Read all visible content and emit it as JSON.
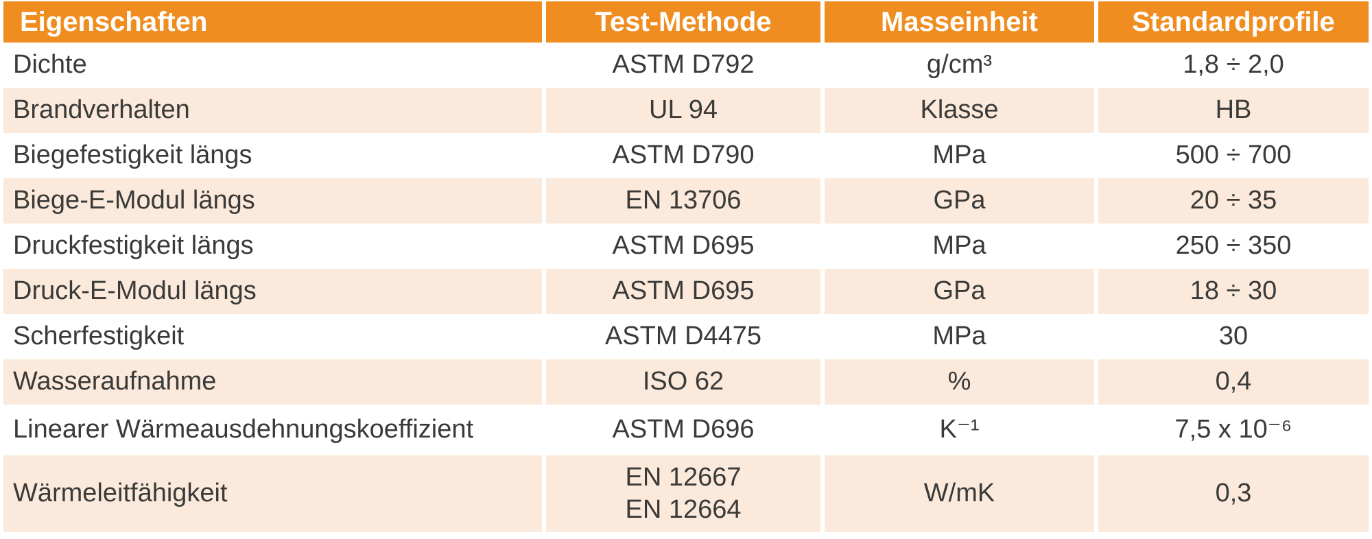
{
  "colors": {
    "header_bg": "#EF8D21",
    "header_text": "#FFFFFF",
    "row_alt_bg": "#FBEADB",
    "body_text": "#3A3A39",
    "row_bg": "#FFFFFF"
  },
  "chart_data": {
    "type": "table",
    "title": "",
    "columns": [
      "Eigenschaften",
      "Test-Methode",
      "Masseinheit",
      "Standardprofile"
    ],
    "rows": [
      [
        "Dichte",
        "ASTM D792",
        "g/cm³",
        "1,8 ÷ 2,0"
      ],
      [
        "Brandverhalten",
        "UL 94",
        "Klasse",
        "HB"
      ],
      [
        "Biegefestigkeit längs",
        "ASTM D790",
        "MPa",
        "500 ÷ 700"
      ],
      [
        "Biege-E-Modul längs",
        "EN 13706",
        "GPa",
        "20 ÷ 35"
      ],
      [
        "Druckfestigkeit längs",
        "ASTM D695",
        "MPa",
        "250 ÷ 350"
      ],
      [
        "Druck-E-Modul längs",
        "ASTM D695",
        "GPa",
        "18 ÷ 30"
      ],
      [
        "Scherfestigkeit",
        "ASTM D4475",
        "MPa",
        "30"
      ],
      [
        "Wasseraufnahme",
        "ISO 62",
        "%",
        "0,4"
      ],
      [
        "Linearer Wärmeausdehnungskoeffizient",
        "ASTM D696",
        "K⁻¹",
        "7,5 x 10⁻⁶"
      ],
      [
        "Wärmeleitfähigkeit",
        "EN 12667\nEN 12664",
        "W/mK",
        "0,3"
      ]
    ],
    "layout": {
      "row_striping": "white / light-cream alternating, starting white",
      "column_alignment": [
        "left",
        "center",
        "center",
        "center"
      ],
      "grid": "off",
      "column_separator": "thin white gaps between columns"
    }
  }
}
